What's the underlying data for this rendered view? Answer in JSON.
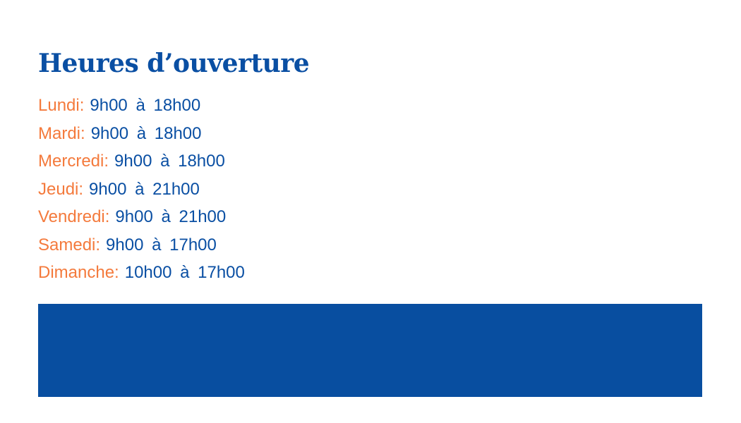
{
  "title": "Heures d’ouverture",
  "hours": [
    {
      "day": "Lundi:",
      "time": "9h00 à 18h00"
    },
    {
      "day": "Mardi:",
      "time": "9h00 à 18h00"
    },
    {
      "day": "Mercredi:",
      "time": "9h00 à 18h00"
    },
    {
      "day": "Jeudi:",
      "time": "9h00 à 21h00"
    },
    {
      "day": "Vendredi:",
      "time": "9h00 à 21h00"
    },
    {
      "day": "Samedi:",
      "time": "9h00 à 17h00"
    },
    {
      "day": "Dimanche:",
      "time": "10h00 à 17h00"
    }
  ],
  "colors": {
    "primary": "#0a4fa3",
    "accent": "#f47a3c",
    "band": "#084ea0"
  }
}
